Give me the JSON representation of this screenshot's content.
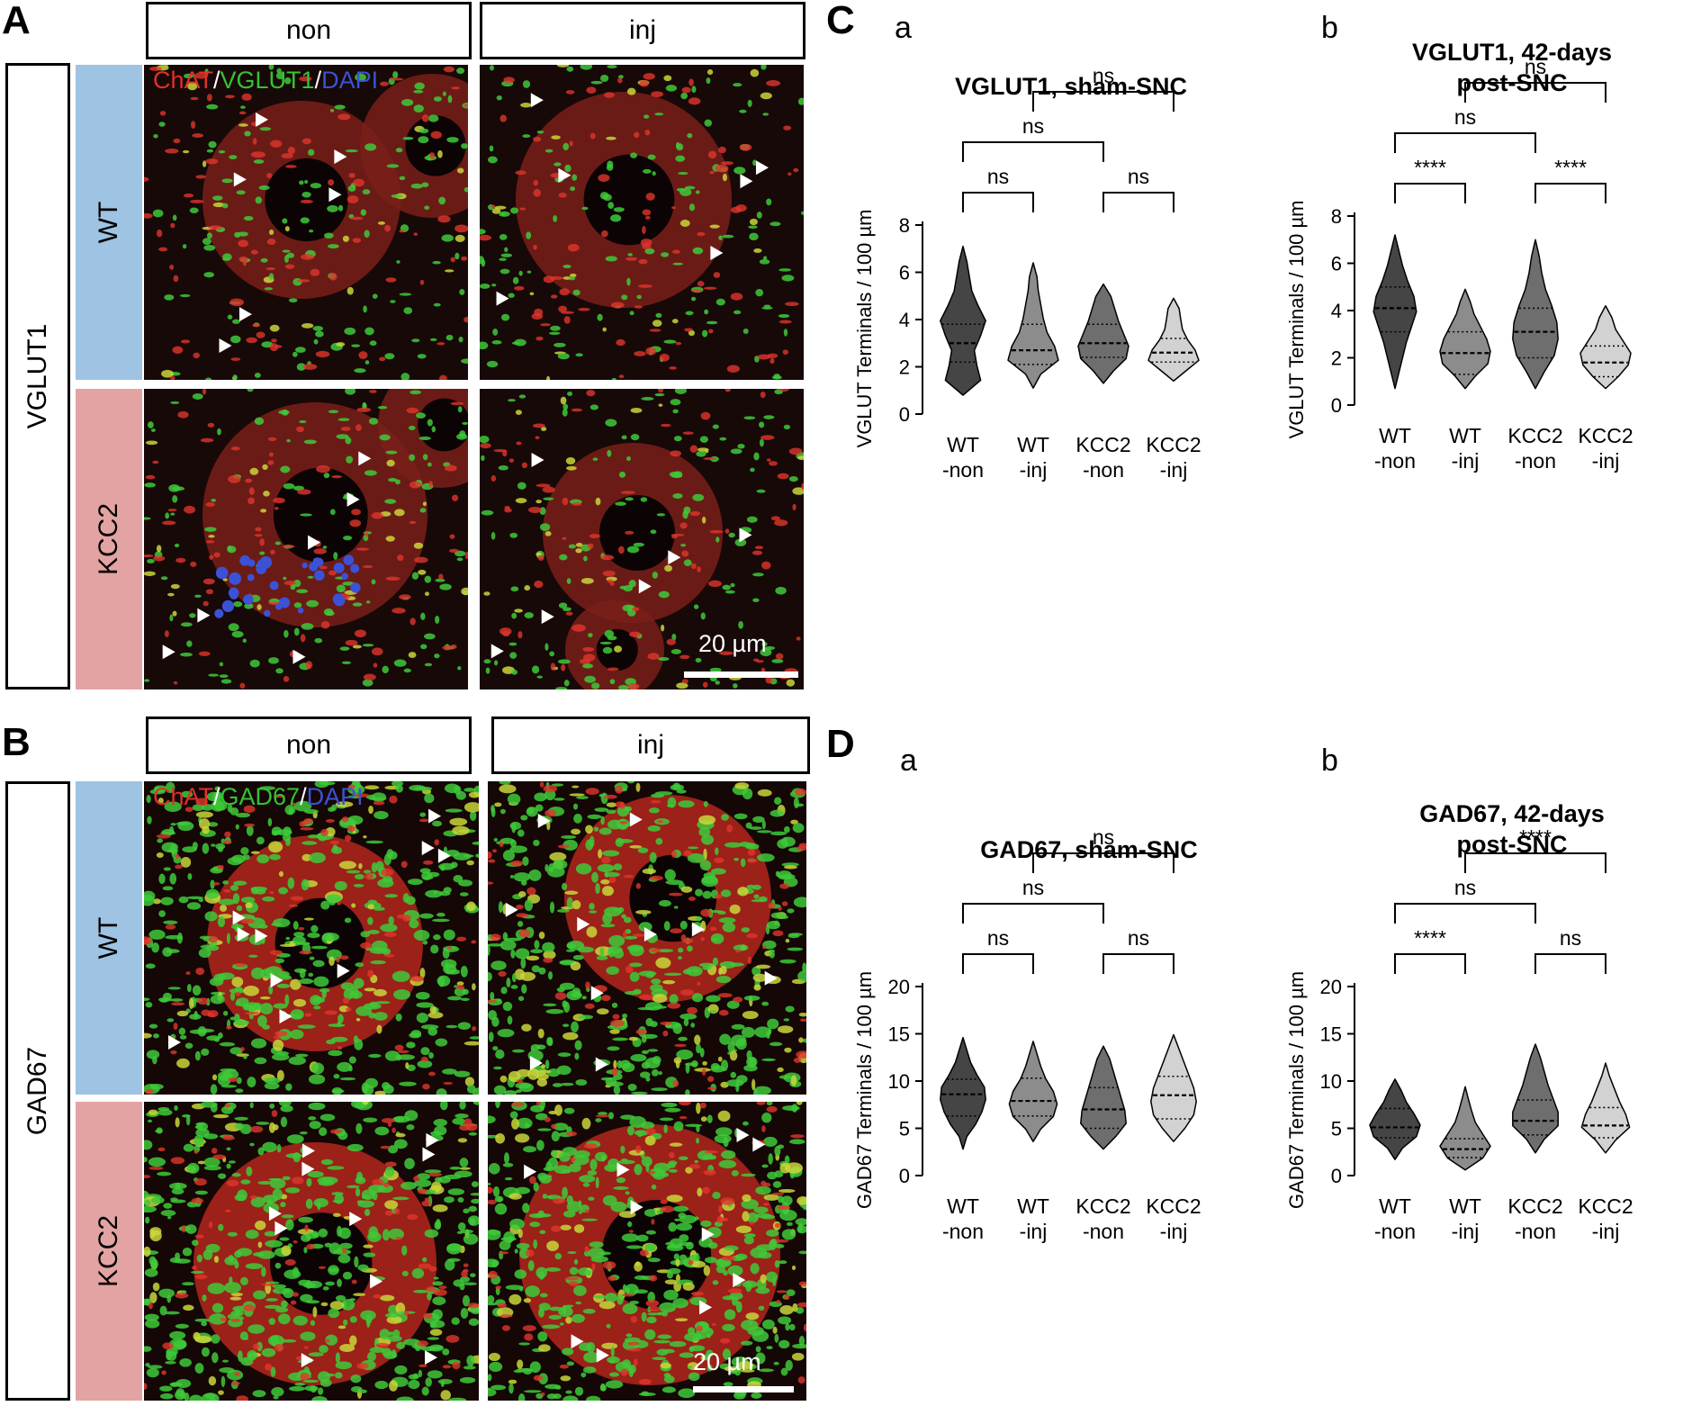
{
  "panels": {
    "A": {
      "letter": "A",
      "col_headers": [
        "non",
        "inj"
      ],
      "row_label": "VGLUT1",
      "genotypes": [
        "WT",
        "KCC2"
      ],
      "stain": {
        "part1": "ChAT",
        "sep1": "/",
        "part2": "VGLUT1",
        "sep2": "/",
        "part3": "DAPI"
      },
      "scale_bar": "20 µm"
    },
    "B": {
      "letter": "B",
      "col_headers": [
        "non",
        "inj"
      ],
      "row_label": "GAD67",
      "genotypes": [
        "WT",
        "KCC2"
      ],
      "stain": {
        "part1": "ChAT",
        "sep1": "/",
        "part2": "GAD67",
        "sep2": "/",
        "part3": "DAPI"
      },
      "scale_bar": "20 µm"
    },
    "C": {
      "letter": "C",
      "sub_a": "a",
      "sub_b": "b"
    },
    "D": {
      "letter": "D",
      "sub_a": "a",
      "sub_b": "b"
    }
  },
  "colors": {
    "wt_bar": "#9ec3e3",
    "kcc2_bar": "#e3a3a3",
    "violin_fills": [
      "#454545",
      "#8c8c8c",
      "#6e6e6e",
      "#d2d2d2"
    ],
    "red_signal": "#e0302a",
    "green_signal": "#35c234",
    "blue_signal": "#3b52d6"
  },
  "chart_data": [
    {
      "id": "Ca",
      "type": "violin",
      "title": [
        "VGLUT1, sham-SNC"
      ],
      "ylabel": "VGLUT Terminals / 100 µm",
      "ylim": [
        0,
        8
      ],
      "yticks": [
        0,
        2,
        4,
        6,
        8
      ],
      "categories": [
        [
          "WT",
          "-non"
        ],
        [
          "WT",
          "-inj"
        ],
        [
          "KCC2",
          "-non"
        ],
        [
          "KCC2",
          "-inj"
        ]
      ],
      "violins": [
        {
          "min": 0.8,
          "max": 7.1,
          "q1": 2.2,
          "median": 3.0,
          "q3": 3.8,
          "shape": [
            0.7,
            0.55,
            0.45,
            0.7,
            0.9,
            0.6,
            0.35,
            0.25,
            0.15
          ]
        },
        {
          "min": 1.1,
          "max": 6.4,
          "q1": 2.1,
          "median": 2.7,
          "q3": 3.8,
          "shape": [
            0.3,
            1.0,
            0.85,
            0.55,
            0.4,
            0.3,
            0.2,
            0.15
          ]
        },
        {
          "min": 1.3,
          "max": 5.5,
          "q1": 2.4,
          "median": 3.0,
          "q3": 3.8,
          "shape": [
            0.4,
            0.9,
            1.0,
            0.8,
            0.6,
            0.45,
            0.3
          ]
        },
        {
          "min": 1.4,
          "max": 4.9,
          "q1": 2.2,
          "median": 2.6,
          "q3": 3.2,
          "shape": [
            0.5,
            1.0,
            0.85,
            0.55,
            0.35,
            0.28,
            0.22
          ]
        }
      ],
      "comparisons": [
        {
          "from": 0,
          "to": 1,
          "label": "ns"
        },
        {
          "from": 2,
          "to": 3,
          "label": "ns"
        },
        {
          "from": 0,
          "to": 2,
          "label": "ns"
        },
        {
          "from": 1,
          "to": 3,
          "label": "ns"
        }
      ]
    },
    {
      "id": "Cb",
      "type": "violin",
      "title": [
        "VGLUT1, 42-days",
        "post-SNC"
      ],
      "ylabel": "VGLUT Terminals / 100 µm",
      "ylim": [
        0,
        8
      ],
      "yticks": [
        0,
        2,
        4,
        6,
        8
      ],
      "categories": [
        [
          "WT",
          "-non"
        ],
        [
          "WT",
          "-inj"
        ],
        [
          "KCC2",
          "-non"
        ],
        [
          "KCC2",
          "-inj"
        ]
      ],
      "violins": [
        {
          "min": 0.7,
          "max": 7.2,
          "q1": 3.1,
          "median": 4.1,
          "q3": 5.0,
          "shape": [
            0.15,
            0.3,
            0.45,
            0.65,
            0.85,
            0.75,
            0.5,
            0.3,
            0.15
          ]
        },
        {
          "min": 0.7,
          "max": 4.9,
          "q1": 1.3,
          "median": 2.2,
          "q3": 3.1,
          "shape": [
            0.4,
            0.9,
            1.0,
            0.85,
            0.6,
            0.35,
            0.2
          ]
        },
        {
          "min": 0.7,
          "max": 7.0,
          "q1": 2.0,
          "median": 3.1,
          "q3": 4.1,
          "shape": [
            0.35,
            0.75,
            0.9,
            0.85,
            0.65,
            0.4,
            0.25,
            0.15
          ]
        },
        {
          "min": 0.7,
          "max": 4.2,
          "q1": 1.2,
          "median": 1.8,
          "q3": 2.5,
          "shape": [
            0.5,
            0.9,
            1.0,
            0.7,
            0.4,
            0.25
          ]
        }
      ],
      "comparisons": [
        {
          "from": 0,
          "to": 1,
          "label": "****"
        },
        {
          "from": 2,
          "to": 3,
          "label": "****"
        },
        {
          "from": 0,
          "to": 2,
          "label": "ns"
        },
        {
          "from": 1,
          "to": 3,
          "label": "ns"
        }
      ]
    },
    {
      "id": "Da",
      "type": "violin",
      "title": [
        "GAD67, sham-SNC"
      ],
      "ylabel": "GAD67 Terminals / 100 µm",
      "ylim": [
        0,
        20
      ],
      "yticks": [
        0,
        5,
        10,
        15,
        20
      ],
      "categories": [
        [
          "WT",
          "-non"
        ],
        [
          "WT",
          "-inj"
        ],
        [
          "KCC2",
          "-non"
        ],
        [
          "KCC2",
          "-inj"
        ]
      ],
      "violins": [
        {
          "min": 2.8,
          "max": 14.6,
          "q1": 6.3,
          "median": 8.6,
          "q3": 10.2,
          "shape": [
            0.15,
            0.5,
            0.75,
            0.9,
            0.85,
            0.55,
            0.3,
            0.15
          ]
        },
        {
          "min": 3.6,
          "max": 14.2,
          "q1": 6.3,
          "median": 7.9,
          "q3": 10.3,
          "shape": [
            0.3,
            0.8,
            0.95,
            0.8,
            0.5,
            0.3,
            0.15
          ]
        },
        {
          "min": 2.8,
          "max": 13.7,
          "q1": 5.0,
          "median": 7.0,
          "q3": 9.3,
          "shape": [
            0.5,
            0.9,
            0.85,
            0.7,
            0.55,
            0.4,
            0.25
          ]
        },
        {
          "min": 3.6,
          "max": 14.9,
          "q1": 6.0,
          "median": 8.5,
          "q3": 10.5,
          "shape": [
            0.45,
            0.8,
            0.9,
            0.8,
            0.6,
            0.4,
            0.2
          ]
        }
      ],
      "comparisons": [
        {
          "from": 0,
          "to": 1,
          "label": "ns"
        },
        {
          "from": 2,
          "to": 3,
          "label": "ns"
        },
        {
          "from": 0,
          "to": 2,
          "label": "ns"
        },
        {
          "from": 1,
          "to": 3,
          "label": "ns"
        }
      ]
    },
    {
      "id": "Db",
      "type": "violin",
      "title": [
        "GAD67, 42-days",
        "post-SNC"
      ],
      "ylabel": "GAD67 Terminals / 100 µm",
      "ylim": [
        0,
        20
      ],
      "yticks": [
        0,
        5,
        10,
        15,
        20
      ],
      "categories": [
        [
          "WT",
          "-non"
        ],
        [
          "WT",
          "-inj"
        ],
        [
          "KCC2",
          "-non"
        ],
        [
          "KCC2",
          "-inj"
        ]
      ],
      "violins": [
        {
          "min": 1.7,
          "max": 10.2,
          "q1": 4.0,
          "median": 5.1,
          "q3": 7.1,
          "shape": [
            0.3,
            0.85,
            1.0,
            0.75,
            0.45,
            0.25
          ]
        },
        {
          "min": 0.6,
          "max": 9.4,
          "q1": 1.9,
          "median": 2.8,
          "q3": 3.9,
          "shape": [
            0.7,
            1.0,
            0.7,
            0.4,
            0.25,
            0.12
          ]
        },
        {
          "min": 2.4,
          "max": 13.9,
          "q1": 4.3,
          "median": 5.8,
          "q3": 8.0,
          "shape": [
            0.35,
            0.9,
            0.9,
            0.7,
            0.5,
            0.35,
            0.2
          ]
        },
        {
          "min": 2.4,
          "max": 11.9,
          "q1": 4.0,
          "median": 5.3,
          "q3": 7.2,
          "shape": [
            0.4,
            0.95,
            0.8,
            0.55,
            0.35,
            0.15
          ]
        }
      ],
      "comparisons": [
        {
          "from": 0,
          "to": 1,
          "label": "****"
        },
        {
          "from": 2,
          "to": 3,
          "label": "ns"
        },
        {
          "from": 0,
          "to": 2,
          "label": "ns"
        },
        {
          "from": 1,
          "to": 3,
          "label": "****"
        }
      ]
    }
  ]
}
